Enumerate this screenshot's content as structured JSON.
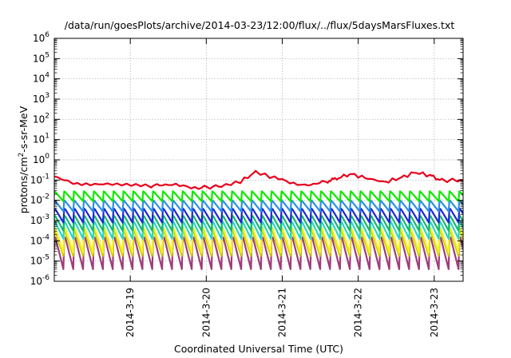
{
  "chart_data": {
    "type": "line",
    "title": "/data/run/goesPlots/archive/2014-03-23/12:00/flux/../flux/5daysMarsFluxes.txt",
    "xlabel": "Coordinated Universal Time (UTC)",
    "ylabel": {
      "prefix": "protons/cm",
      "sup": "2",
      "suffix": "-s-sr-MeV"
    },
    "yscale": "log",
    "ylim_exp": [
      -6,
      6
    ],
    "y_ticks": [
      {
        "base": "10",
        "exp": "-6"
      },
      {
        "base": "10",
        "exp": "-5"
      },
      {
        "base": "10",
        "exp": "-4"
      },
      {
        "base": "10",
        "exp": "-3"
      },
      {
        "base": "10",
        "exp": "-2"
      },
      {
        "base": "10",
        "exp": "-1"
      },
      {
        "base": "10",
        "exp": "0"
      },
      {
        "base": "10",
        "exp": "1"
      },
      {
        "base": "10",
        "exp": "2"
      },
      {
        "base": "10",
        "exp": "3"
      },
      {
        "base": "10",
        "exp": "4"
      },
      {
        "base": "10",
        "exp": "5"
      },
      {
        "base": "10",
        "exp": "6"
      }
    ],
    "x_range_days": [
      -1.0,
      4.38
    ],
    "x_ticks": [
      {
        "label": "2014-3-19",
        "day": 0
      },
      {
        "label": "2014-3-20",
        "day": 1
      },
      {
        "label": "2014-3-21",
        "day": 2
      },
      {
        "label": "2014-3-22",
        "day": 3
      },
      {
        "label": "2014-3-23",
        "day": 4
      }
    ],
    "grid": true,
    "series": [
      {
        "color": "#e8001c",
        "kind": "smooth",
        "points": [
          [
            -1.0,
            -0.82
          ],
          [
            -0.75,
            -1.15
          ],
          [
            -0.3,
            -1.22
          ],
          [
            0.2,
            -1.3
          ],
          [
            0.5,
            -1.22
          ],
          [
            0.9,
            -1.38
          ],
          [
            1.2,
            -1.3
          ],
          [
            1.45,
            -1.08
          ],
          [
            1.65,
            -0.6
          ],
          [
            1.9,
            -0.9
          ],
          [
            2.3,
            -1.28
          ],
          [
            2.6,
            -1.05
          ],
          [
            2.72,
            -0.92
          ],
          [
            2.9,
            -0.7
          ],
          [
            3.1,
            -0.9
          ],
          [
            3.35,
            -1.1
          ],
          [
            3.55,
            -0.9
          ],
          [
            3.75,
            -0.62
          ],
          [
            3.95,
            -0.78
          ],
          [
            4.1,
            -1.02
          ],
          [
            4.38,
            -1.0
          ]
        ]
      },
      {
        "color": "#11e800",
        "kind": "sawtooth",
        "period": 0.13,
        "top": -1.55,
        "bottom": -2.05
      },
      {
        "color": "#2a8fe6",
        "kind": "sawtooth",
        "period": 0.13,
        "top": -2.0,
        "bottom": -2.55
      },
      {
        "color": "#1c2ad4",
        "kind": "sawtooth",
        "period": 0.13,
        "top": -2.4,
        "bottom": -3.1
      },
      {
        "color": "#16b86c",
        "kind": "sawtooth",
        "period": 0.13,
        "top": -2.75,
        "bottom": -3.5
      },
      {
        "color": "#25d6c4",
        "kind": "sawtooth",
        "period": 0.13,
        "top": -3.05,
        "bottom": -3.9
      },
      {
        "color": "#f3f31a",
        "kind": "sawtooth",
        "period": 0.13,
        "top": -3.35,
        "bottom": -4.6
      },
      {
        "color": "#c6c600",
        "kind": "sawtooth",
        "period": 0.13,
        "top": -3.5,
        "bottom": -4.75
      },
      {
        "color": "#9e3c7c",
        "kind": "sawtooth",
        "period": 0.13,
        "top": -3.8,
        "bottom": -5.4
      }
    ]
  }
}
